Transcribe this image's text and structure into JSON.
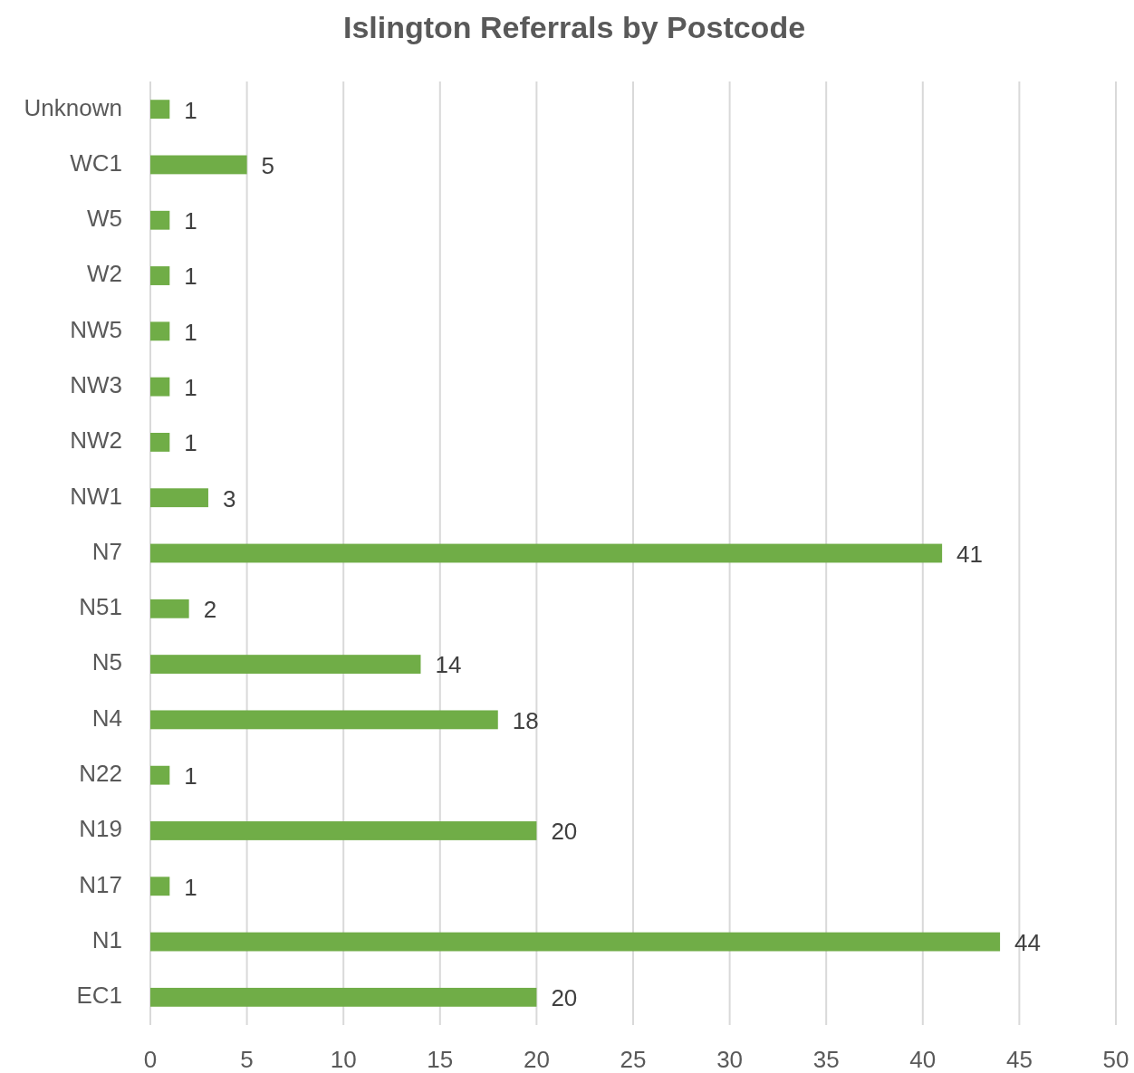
{
  "chart_data": {
    "type": "bar",
    "orientation": "horizontal",
    "title": "Islington Referrals by Postcode",
    "categories": [
      "Unknown",
      "WC1",
      "W5",
      "W2",
      "NW5",
      "NW3",
      "NW2",
      "NW1",
      "N7",
      "N51",
      "N5",
      "N4",
      "N22",
      "N19",
      "N17",
      "N1",
      "EC1"
    ],
    "values": [
      1,
      5,
      1,
      1,
      1,
      1,
      1,
      3,
      41,
      2,
      14,
      18,
      1,
      20,
      1,
      44,
      20
    ],
    "color": "#70ad47",
    "xlim": [
      0,
      50
    ],
    "xticks": [
      0,
      5,
      10,
      15,
      20,
      25,
      30,
      35,
      40,
      45,
      50
    ],
    "grid": "x",
    "data_labels": true
  }
}
